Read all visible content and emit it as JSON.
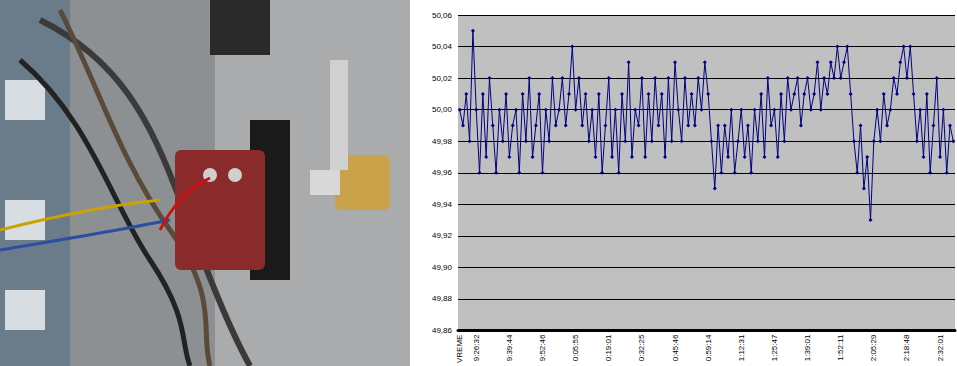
{
  "chart_data": {
    "type": "line",
    "color": "#000080",
    "marker": "diamond",
    "grid": true,
    "categories": [
      "VREME",
      null,
      null,
      null,
      null,
      "9:26:32",
      null,
      null,
      null,
      null,
      null,
      null,
      null,
      null,
      null,
      "9:39:44",
      null,
      null,
      null,
      null,
      null,
      null,
      null,
      null,
      null,
      "9:52:46",
      null,
      null,
      null,
      null,
      null,
      null,
      null,
      null,
      null,
      "0:05:55",
      null,
      null,
      null,
      null,
      null,
      null,
      null,
      null,
      null,
      "0:19:01",
      null,
      null,
      null,
      null,
      null,
      null,
      null,
      null,
      null,
      "0:32:25",
      null,
      null,
      null,
      null,
      null,
      null,
      null,
      null,
      null,
      "0:45:46",
      null,
      null,
      null,
      null,
      null,
      null,
      null,
      null,
      null,
      "0:59:14",
      null,
      null,
      null,
      null,
      null,
      null,
      null,
      null,
      null,
      "1:12:31",
      null,
      null,
      null,
      null,
      null,
      null,
      null,
      null,
      null,
      "1:25:47",
      null,
      null,
      null,
      null,
      null,
      null,
      null,
      null,
      null,
      "1:39:01",
      null,
      null,
      null,
      null,
      null,
      null,
      null,
      null,
      null,
      "1:52:11",
      null,
      null,
      null,
      null,
      null,
      null,
      null,
      null,
      null,
      "2:05:29",
      null,
      null,
      null,
      null,
      null,
      null,
      null,
      null,
      null,
      "2:18:48",
      null,
      null,
      null,
      null,
      null,
      null,
      null,
      null,
      null,
      "2:32:01",
      null,
      null,
      null,
      null
    ],
    "values": [
      50.0,
      49.99,
      50.01,
      49.98,
      50.05,
      50.0,
      49.96,
      50.01,
      49.97,
      50.02,
      49.99,
      49.96,
      50.0,
      49.98,
      50.01,
      49.97,
      49.99,
      50.0,
      49.96,
      50.01,
      49.98,
      50.02,
      49.97,
      49.99,
      50.01,
      49.96,
      50.0,
      49.98,
      50.02,
      49.99,
      50.0,
      50.02,
      49.99,
      50.01,
      50.04,
      50.0,
      50.02,
      49.99,
      50.01,
      49.98,
      50.0,
      49.97,
      50.01,
      49.96,
      49.99,
      50.02,
      49.97,
      50.0,
      49.96,
      50.01,
      49.98,
      50.03,
      49.97,
      50.0,
      49.99,
      50.02,
      49.97,
      50.01,
      49.98,
      50.02,
      49.99,
      50.01,
      49.97,
      50.02,
      49.98,
      50.03,
      50.0,
      49.98,
      50.02,
      49.99,
      50.01,
      49.99,
      50.02,
      50.0,
      50.03,
      50.01,
      49.98,
      49.95,
      49.99,
      49.96,
      49.99,
      49.97,
      50.0,
      49.96,
      49.98,
      50.0,
      49.97,
      49.99,
      49.96,
      50.0,
      49.98,
      50.01,
      49.97,
      50.02,
      49.99,
      50.0,
      49.97,
      50.01,
      49.98,
      50.02,
      50.0,
      50.01,
      50.02,
      49.99,
      50.01,
      50.02,
      50.0,
      50.01,
      50.03,
      50.0,
      50.02,
      50.01,
      50.03,
      50.02,
      50.04,
      50.02,
      50.03,
      50.04,
      50.01,
      49.98,
      49.96,
      49.99,
      49.95,
      49.97,
      49.93,
      49.98,
      50.0,
      49.98,
      50.01,
      49.99,
      50.0,
      50.02,
      50.01,
      50.03,
      50.04,
      50.02,
      50.04,
      50.01,
      49.98,
      50.0,
      49.97,
      50.01,
      49.96,
      49.99,
      50.02,
      49.97,
      50.0,
      49.96,
      49.99,
      49.98
    ],
    "ylim": [
      49.86,
      50.06
    ],
    "yticks": [
      {
        "value": 49.86,
        "label": "49,86"
      },
      {
        "value": 49.88,
        "label": "49,88"
      },
      {
        "value": 49.9,
        "label": "49,90"
      },
      {
        "value": 49.92,
        "label": "49,92"
      },
      {
        "value": 49.94,
        "label": "49,94"
      },
      {
        "value": 49.96,
        "label": "49,96"
      },
      {
        "value": 49.98,
        "label": "49,98"
      },
      {
        "value": 50.0,
        "label": "50,00"
      },
      {
        "value": 50.02,
        "label": "50,02"
      },
      {
        "value": 50.04,
        "label": "50,04"
      },
      {
        "value": 50.06,
        "label": "50,06"
      }
    ]
  }
}
